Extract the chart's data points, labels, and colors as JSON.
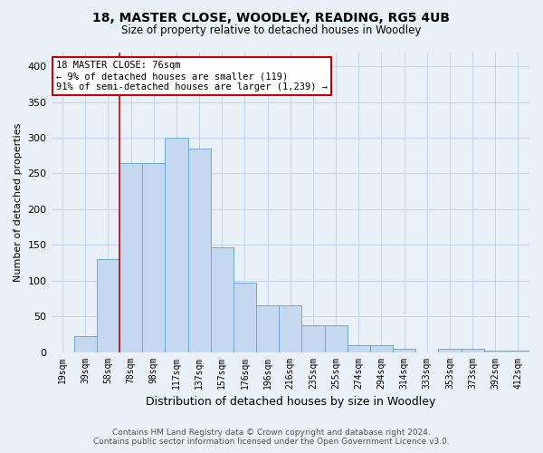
{
  "title": "18, MASTER CLOSE, WOODLEY, READING, RG5 4UB",
  "subtitle": "Size of property relative to detached houses in Woodley",
  "xlabel": "Distribution of detached houses by size in Woodley",
  "ylabel": "Number of detached properties",
  "footer1": "Contains HM Land Registry data © Crown copyright and database right 2024.",
  "footer2": "Contains public sector information licensed under the Open Government Licence v3.0.",
  "bar_labels": [
    "19sqm",
    "39sqm",
    "58sqm",
    "78sqm",
    "98sqm",
    "117sqm",
    "137sqm",
    "157sqm",
    "176sqm",
    "196sqm",
    "216sqm",
    "235sqm",
    "255sqm",
    "274sqm",
    "294sqm",
    "314sqm",
    "333sqm",
    "353sqm",
    "373sqm",
    "392sqm",
    "412sqm"
  ],
  "bar_values": [
    0,
    22,
    130,
    265,
    265,
    300,
    285,
    147,
    97,
    65,
    65,
    37,
    37,
    9,
    9,
    5,
    0,
    5,
    5,
    2,
    2
  ],
  "bar_color": "#c5d8f0",
  "bar_edge_color": "#6aaad4",
  "grid_color": "#c8d4e8",
  "background_color": "#eaf0f8",
  "annotation_line1": "18 MASTER CLOSE: 76sqm",
  "annotation_line2": "← 9% of detached houses are smaller (119)",
  "annotation_line3": "91% of semi-detached houses are larger (1,239) →",
  "annotation_box_color": "#ffffff",
  "annotation_border_color": "#cc0000",
  "vline_color": "#cc0000",
  "vline_x_index": 3,
  "ylim": [
    0,
    420
  ],
  "yticks": [
    0,
    50,
    100,
    150,
    200,
    250,
    300,
    350,
    400
  ]
}
